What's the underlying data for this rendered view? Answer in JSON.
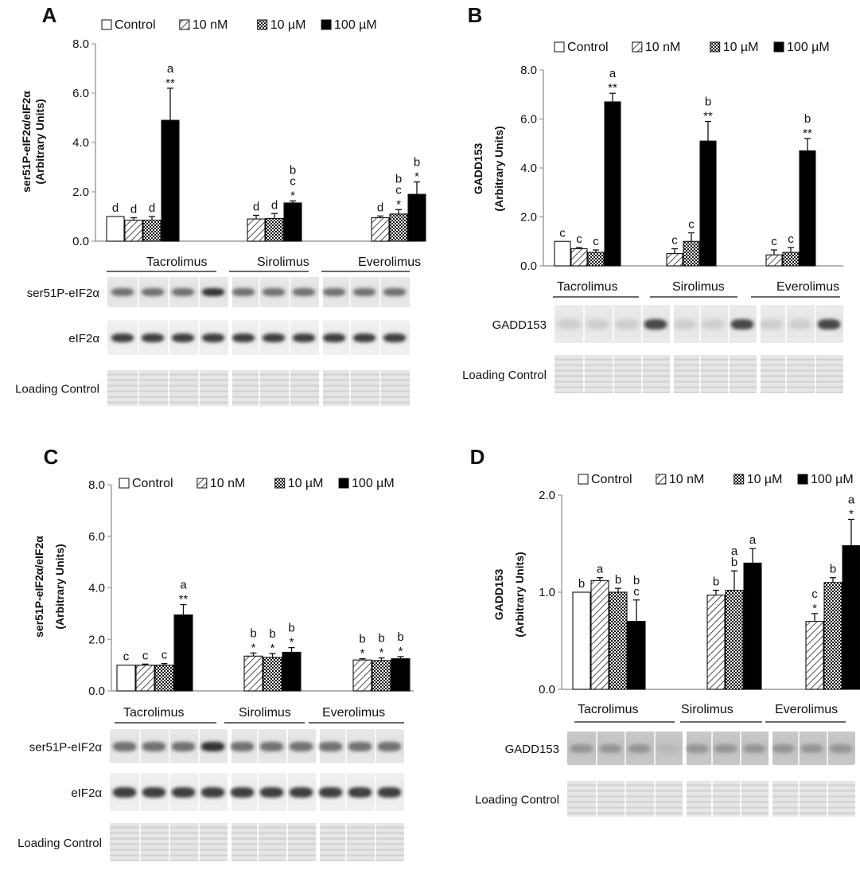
{
  "panels": [
    {
      "id": "A",
      "letter": "A",
      "ylabel_line1": "ser51P-eIF2α/eIF2α",
      "ylabel_line2": "(Arbitrary Units)",
      "groups": [
        "Tacrolimus",
        "Sirolimus",
        "Everolimus"
      ],
      "blot_rows": [
        "ser51P-eIF2α",
        "eIF2α",
        "Loading Control"
      ],
      "chart_data": {
        "type": "bar",
        "categories": [
          "Tacrolimus",
          "Sirolimus",
          "Everolimus"
        ],
        "ylim": [
          0,
          8
        ],
        "yticks": [
          "0.0",
          "2.0",
          "4.0",
          "6.0",
          "8.0"
        ],
        "legend": [
          "Control",
          "10 nM",
          "10 µM",
          "100 µM"
        ],
        "series": [
          {
            "name": "Control",
            "values": [
              1.0,
              null,
              null
            ],
            "errors": [
              0,
              0,
              0
            ],
            "labels": [
              "d",
              "",
              ""
            ]
          },
          {
            "name": "10 nM",
            "values": [
              0.85,
              0.9,
              0.95
            ],
            "errors": [
              0.1,
              0.15,
              0.07
            ],
            "labels": [
              "d",
              "d",
              "d"
            ]
          },
          {
            "name": "10 µM",
            "values": [
              0.85,
              0.92,
              1.1
            ],
            "errors": [
              0.15,
              0.2,
              0.18
            ],
            "labels": [
              "d",
              "d",
              "b\nc\n*"
            ]
          },
          {
            "name": "100 µM",
            "values": [
              4.9,
              1.55,
              1.9
            ],
            "errors": [
              1.3,
              0.08,
              0.5
            ],
            "labels": [
              "a\n**",
              "b\nc\n*",
              "b\n*"
            ]
          }
        ]
      }
    },
    {
      "id": "B",
      "letter": "B",
      "ylabel_line1": "GADD153",
      "ylabel_line2": "(Arbitrary Units)",
      "groups": [
        "Tacrolimus",
        "Sirolimus",
        "Everolimus"
      ],
      "blot_rows": [
        "GADD153",
        "Loading Control"
      ],
      "chart_data": {
        "type": "bar",
        "categories": [
          "Tacrolimus",
          "Sirolimus",
          "Everolimus"
        ],
        "ylim": [
          0,
          8
        ],
        "yticks": [
          "0.0",
          "2.0",
          "4.0",
          "6.0",
          "8.0"
        ],
        "legend": [
          "Control",
          "10 nM",
          "10 µM",
          "100 µM"
        ],
        "series": [
          {
            "name": "Control",
            "values": [
              1.0,
              null,
              null
            ],
            "errors": [
              0,
              0,
              0
            ],
            "labels": [
              "c",
              "",
              ""
            ]
          },
          {
            "name": "10 nM",
            "values": [
              0.7,
              0.5,
              0.45
            ],
            "errors": [
              0.05,
              0.2,
              0.2
            ],
            "labels": [
              "c",
              "c",
              "c"
            ]
          },
          {
            "name": "10 µM",
            "values": [
              0.55,
              1.0,
              0.55
            ],
            "errors": [
              0.1,
              0.35,
              0.2
            ],
            "labels": [
              "c",
              "c",
              "c"
            ]
          },
          {
            "name": "100 µM",
            "values": [
              6.7,
              5.1,
              4.7
            ],
            "errors": [
              0.35,
              0.8,
              0.5
            ],
            "labels": [
              "a\n**",
              "b\n**",
              "b\n**"
            ]
          }
        ]
      }
    },
    {
      "id": "C",
      "letter": "C",
      "ylabel_line1": "ser51P-eIF2α/eIF2α",
      "ylabel_line2": "(Arbitrary Units)",
      "groups": [
        "Tacrolimus",
        "Sirolimus",
        "Everolimus"
      ],
      "blot_rows": [
        "ser51P-eIF2α",
        "eIF2α",
        "Loading Control"
      ],
      "chart_data": {
        "type": "bar",
        "categories": [
          "Tacrolimus",
          "Sirolimus",
          "Everolimus"
        ],
        "ylim": [
          0,
          8
        ],
        "yticks": [
          "0.0",
          "2.0",
          "4.0",
          "6.0",
          "8.0"
        ],
        "legend": [
          "Control",
          "10 nM",
          "10 µM",
          "100 µM"
        ],
        "series": [
          {
            "name": "Control",
            "values": [
              1.0,
              null,
              null
            ],
            "errors": [
              0,
              0,
              0
            ],
            "labels": [
              "c",
              "",
              ""
            ]
          },
          {
            "name": "10 nM",
            "values": [
              1.0,
              1.35,
              1.2
            ],
            "errors": [
              0.04,
              0.12,
              0.05
            ],
            "labels": [
              "c",
              "b\n*",
              "b\n*"
            ]
          },
          {
            "name": "10 µM",
            "values": [
              1.0,
              1.3,
              1.18
            ],
            "errors": [
              0.06,
              0.15,
              0.1
            ],
            "labels": [
              "c",
              "b\n*",
              "b\n*"
            ]
          },
          {
            "name": "100 µM",
            "values": [
              2.95,
              1.5,
              1.25
            ],
            "errors": [
              0.4,
              0.18,
              0.08
            ],
            "labels": [
              "a\n**",
              "b\n*",
              "b\n*"
            ]
          }
        ]
      }
    },
    {
      "id": "D",
      "letter": "D",
      "ylabel_line1": "GADD153",
      "ylabel_line2": "(Arbitrary Units)",
      "groups": [
        "Tacrolimus",
        "Sirolimus",
        "Everolimus"
      ],
      "blot_rows": [
        "GADD153",
        "Loading Control"
      ],
      "chart_data": {
        "type": "bar",
        "categories": [
          "Tacrolimus",
          "Sirolimus",
          "Everolimus"
        ],
        "ylim": [
          0,
          2
        ],
        "yticks": [
          "0.0",
          "1.0",
          "2.0"
        ],
        "legend": [
          "Control",
          "10 nM",
          "10 µM",
          "100 µM"
        ],
        "series": [
          {
            "name": "Control",
            "values": [
              1.0,
              null,
              null
            ],
            "errors": [
              0,
              0,
              0
            ],
            "labels": [
              "b",
              "",
              ""
            ]
          },
          {
            "name": "10 nM",
            "values": [
              1.12,
              0.97,
              0.7
            ],
            "errors": [
              0.03,
              0.05,
              0.08
            ],
            "labels": [
              "a",
              "b",
              "c\n*"
            ]
          },
          {
            "name": "10 µM",
            "values": [
              1.0,
              1.02,
              1.1
            ],
            "errors": [
              0.04,
              0.2,
              0.05
            ],
            "labels": [
              "b",
              "a\nb",
              "b"
            ]
          },
          {
            "name": "100 µM",
            "values": [
              0.7,
              1.3,
              1.48
            ],
            "errors": [
              0.22,
              0.15,
              0.27
            ],
            "labels": [
              "b\nc",
              "a",
              "a\n*"
            ]
          }
        ]
      }
    }
  ]
}
